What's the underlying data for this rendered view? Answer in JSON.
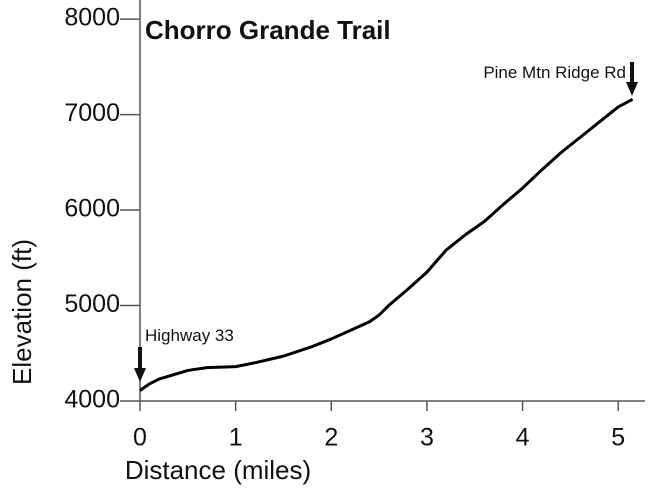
{
  "chart_data": {
    "type": "line",
    "title": "Chorro Grande Trail",
    "x_label": "Distance (miles)",
    "y_label": "Elevation (ft)",
    "x": [
      0,
      0.1,
      0.2,
      0.4,
      0.5,
      0.7,
      1.0,
      1.2,
      1.5,
      1.8,
      2.0,
      2.2,
      2.4,
      2.5,
      2.6,
      2.8,
      3.0,
      3.2,
      3.4,
      3.6,
      3.8,
      4.0,
      4.2,
      4.4,
      4.6,
      4.8,
      5.0,
      5.15
    ],
    "series": [
      {
        "name": "Elevation",
        "color": "#000000",
        "values": [
          4110,
          4180,
          4230,
          4290,
          4320,
          4350,
          4360,
          4400,
          4470,
          4570,
          4650,
          4740,
          4830,
          4900,
          5000,
          5170,
          5350,
          5580,
          5740,
          5880,
          6060,
          6230,
          6420,
          6600,
          6760,
          6920,
          7080,
          7160
        ]
      }
    ],
    "xlim": [
      0,
      5.28
    ],
    "ylim": [
      4000,
      8200
    ],
    "xticks": [
      0,
      1,
      2,
      3,
      4,
      5
    ],
    "yticks": [
      4000,
      5000,
      6000,
      7000,
      8000
    ],
    "annotations": [
      "Highway 33",
      "Pine Mtn Ridge Rd"
    ]
  }
}
